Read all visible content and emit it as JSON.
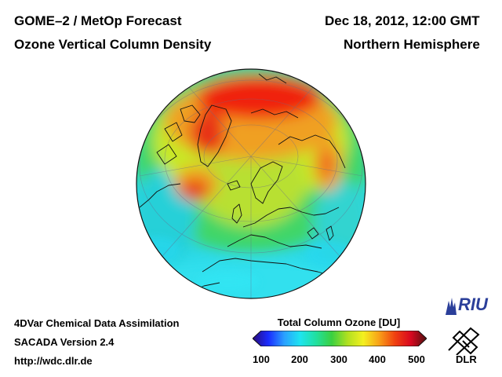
{
  "header": {
    "title_line1": "GOME–2 / MetOp Forecast",
    "title_line2": "Ozone Vertical Column Density",
    "datetime": "Dec 18, 2012, 12:00 GMT",
    "region": "Northern Hemisphere"
  },
  "footer": {
    "method": "4DVar Chemical Data Assimilation",
    "version": "SACADA Version 2.4",
    "url": "http://wdc.dlr.de"
  },
  "colorbar": {
    "title": "Total Column Ozone [DU]",
    "min": 100,
    "max": 500,
    "ticks": [
      "100",
      "200",
      "300",
      "400",
      "500"
    ],
    "colors": [
      "#2a0a7a",
      "#1a2cff",
      "#2aa0ff",
      "#1ee4f0",
      "#20e0a0",
      "#3ad040",
      "#b0e020",
      "#f4f020",
      "#f8a018",
      "#f04010",
      "#d80820",
      "#501010"
    ]
  },
  "logos": {
    "riu_text": "RIU",
    "dlr_text": "DLR"
  },
  "map": {
    "projection": "orthographic, Northern Hemisphere",
    "ocean_base_color": "#28d8e8"
  }
}
